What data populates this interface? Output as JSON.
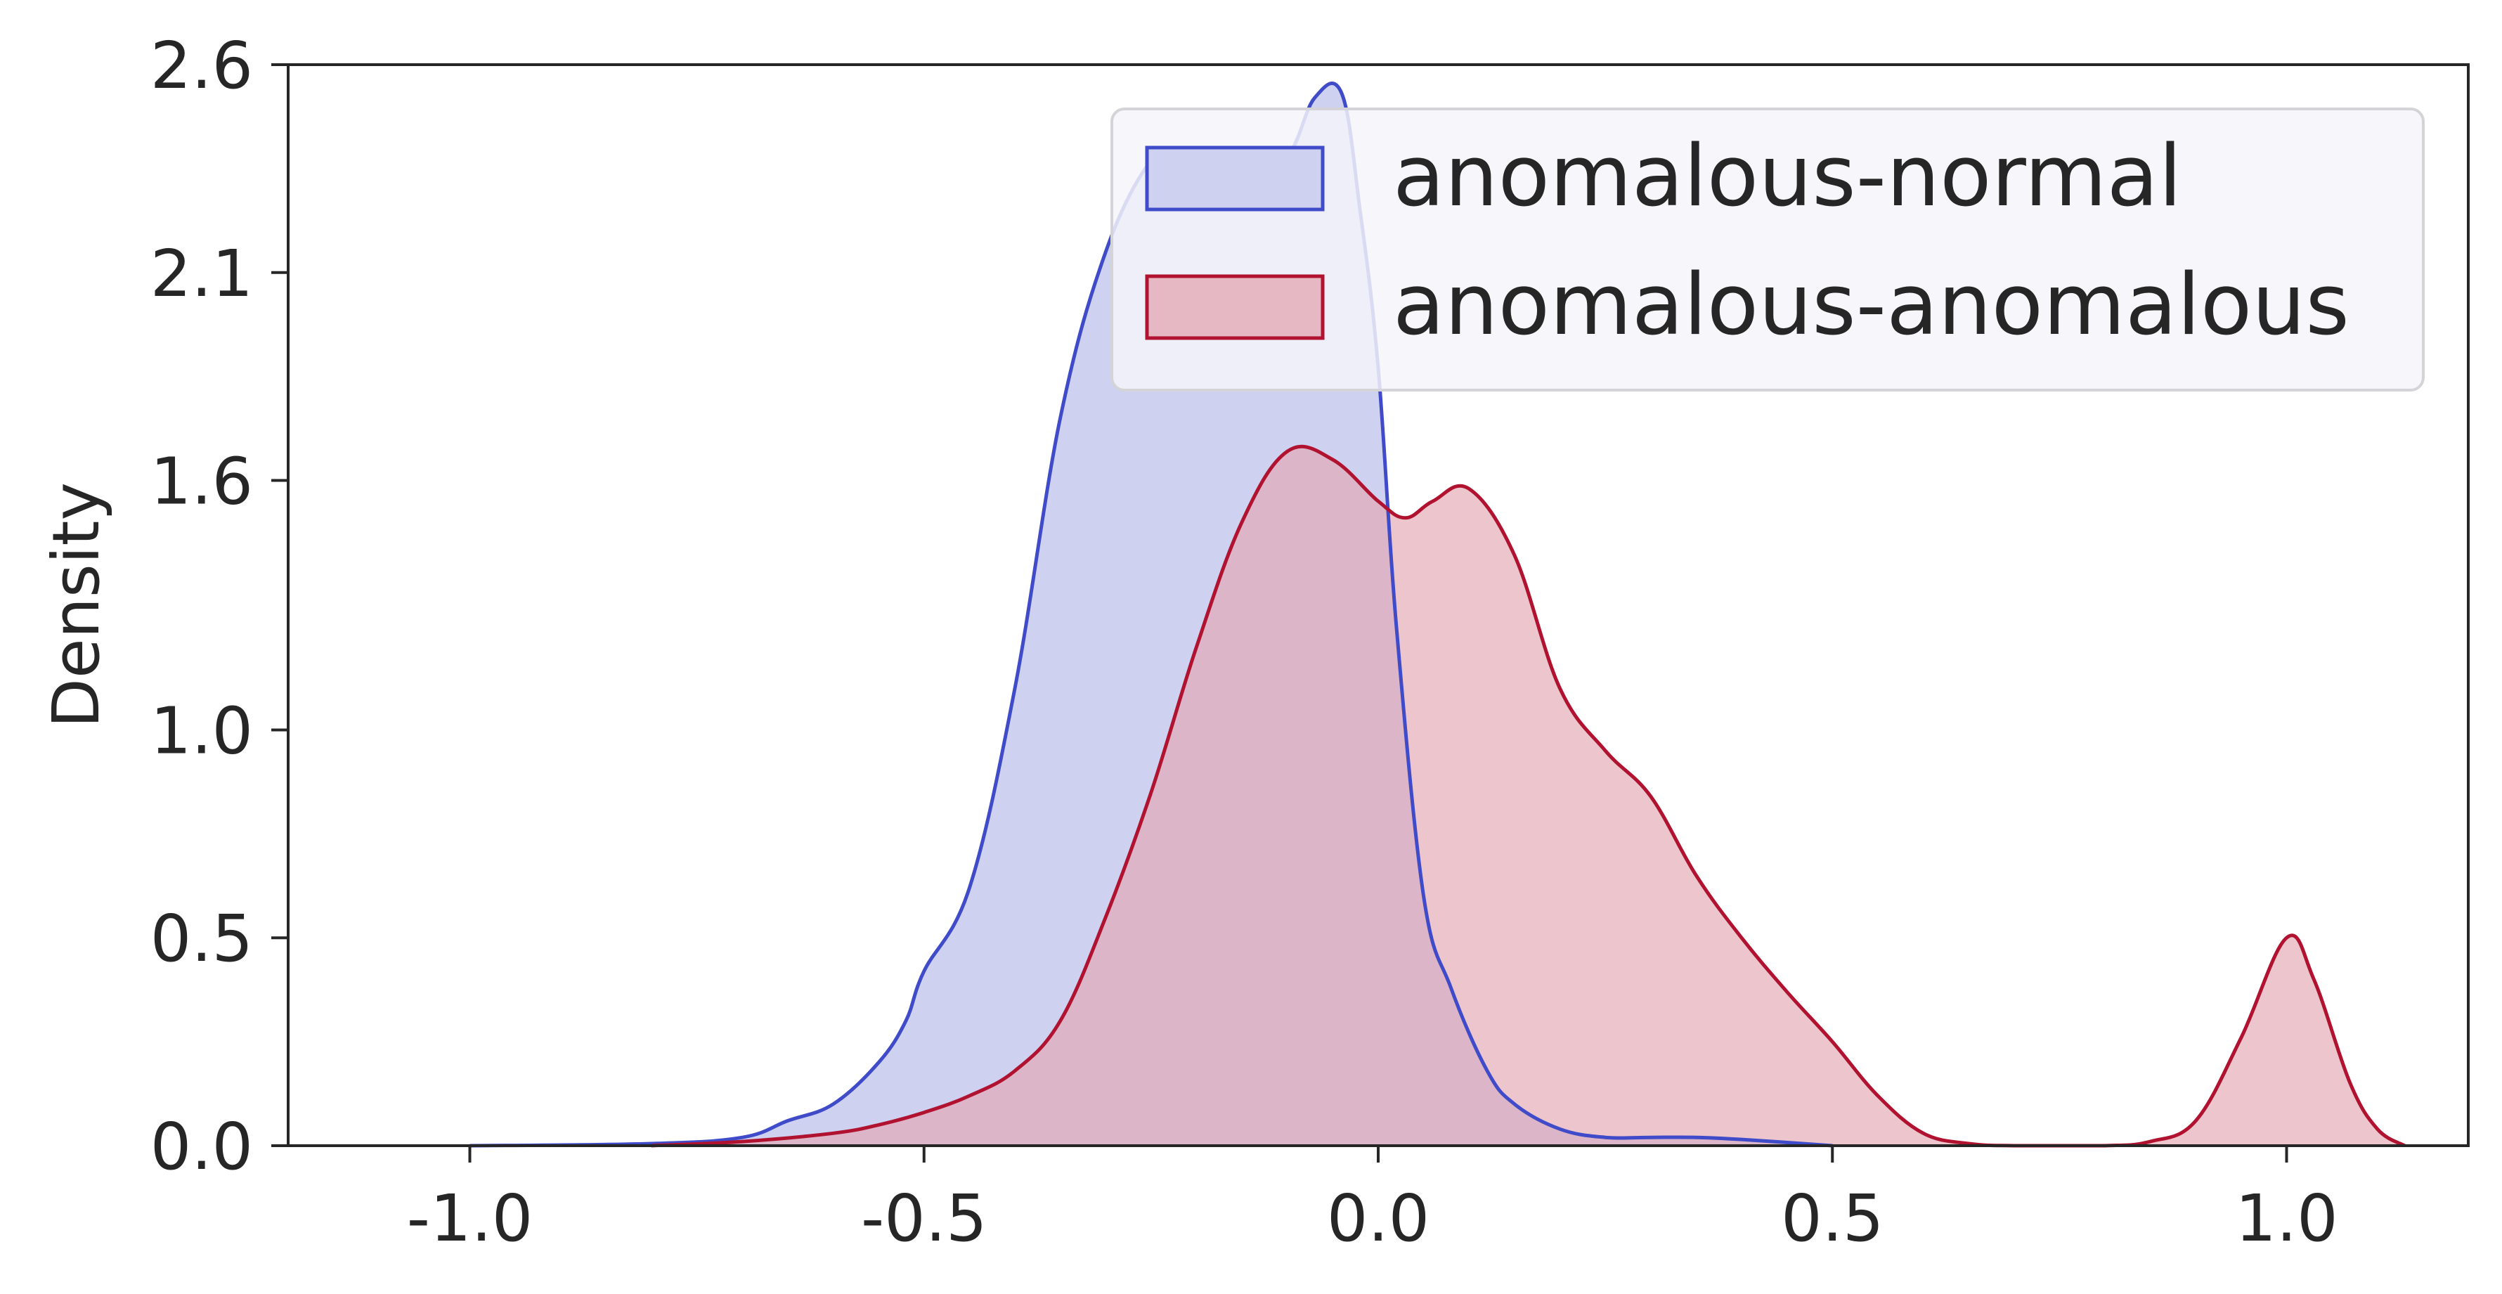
{
  "chart_data": {
    "type": "area",
    "title": "",
    "xlabel": "",
    "ylabel": "Density",
    "xlim": [
      -1.2,
      1.2
    ],
    "ylim": [
      0,
      2.6
    ],
    "x_ticks": [
      -1.0,
      -0.5,
      0.0,
      0.5,
      1.0
    ],
    "x_tick_labels": [
      "-1.0",
      "-0.5",
      "0.0",
      "0.5",
      "1.0"
    ],
    "y_ticks": [
      0.0,
      0.5,
      1.0,
      1.6,
      2.1,
      2.6
    ],
    "y_tick_labels": [
      "0.0",
      "0.5",
      "1.0",
      "1.6",
      "2.1",
      "2.6"
    ],
    "grid": false,
    "legend_position": "top-right",
    "series": [
      {
        "name": "anomalous-normal",
        "line_color": "#3f4bc8",
        "fill_color": "#cfd1f0",
        "x": [
          -1.0,
          -0.8,
          -0.7,
          -0.65,
          -0.6,
          -0.55,
          -0.52,
          -0.5,
          -0.45,
          -0.4,
          -0.35,
          -0.3,
          -0.25,
          -0.22,
          -0.2,
          -0.15,
          -0.1,
          -0.07,
          -0.04,
          -0.02,
          0.0,
          0.02,
          0.05,
          0.08,
          0.12,
          0.15,
          0.2,
          0.25,
          0.3,
          0.35,
          0.4,
          0.5
        ],
        "y": [
          0.0,
          0.005,
          0.02,
          0.06,
          0.1,
          0.2,
          0.3,
          0.42,
          0.62,
          1.1,
          1.75,
          2.15,
          2.37,
          2.38,
          2.34,
          2.32,
          2.38,
          2.52,
          2.53,
          2.25,
          1.87,
          1.25,
          0.6,
          0.38,
          0.18,
          0.1,
          0.04,
          0.02,
          0.02,
          0.02,
          0.015,
          0.0
        ]
      },
      {
        "name": "anomalous-anomalous",
        "line_color": "#b0122f",
        "fill_color": "#e3a6b2",
        "x": [
          -0.8,
          -0.7,
          -0.6,
          -0.55,
          -0.5,
          -0.45,
          -0.4,
          -0.35,
          -0.3,
          -0.25,
          -0.2,
          -0.15,
          -0.1,
          -0.05,
          0.0,
          0.03,
          0.06,
          0.1,
          0.15,
          0.2,
          0.25,
          0.3,
          0.35,
          0.4,
          0.45,
          0.5,
          0.55,
          0.6,
          0.65,
          0.7,
          0.8,
          0.85,
          0.9,
          0.95,
          1.0,
          1.03,
          1.07,
          1.1,
          1.13
        ],
        "y": [
          0.0,
          0.01,
          0.03,
          0.05,
          0.08,
          0.12,
          0.18,
          0.3,
          0.55,
          0.85,
          1.2,
          1.5,
          1.67,
          1.65,
          1.55,
          1.51,
          1.55,
          1.58,
          1.42,
          1.1,
          0.95,
          0.84,
          0.65,
          0.5,
          0.37,
          0.25,
          0.12,
          0.03,
          0.005,
          0.0,
          0.0,
          0.01,
          0.06,
          0.26,
          0.5,
          0.4,
          0.15,
          0.04,
          0.0
        ]
      }
    ]
  }
}
